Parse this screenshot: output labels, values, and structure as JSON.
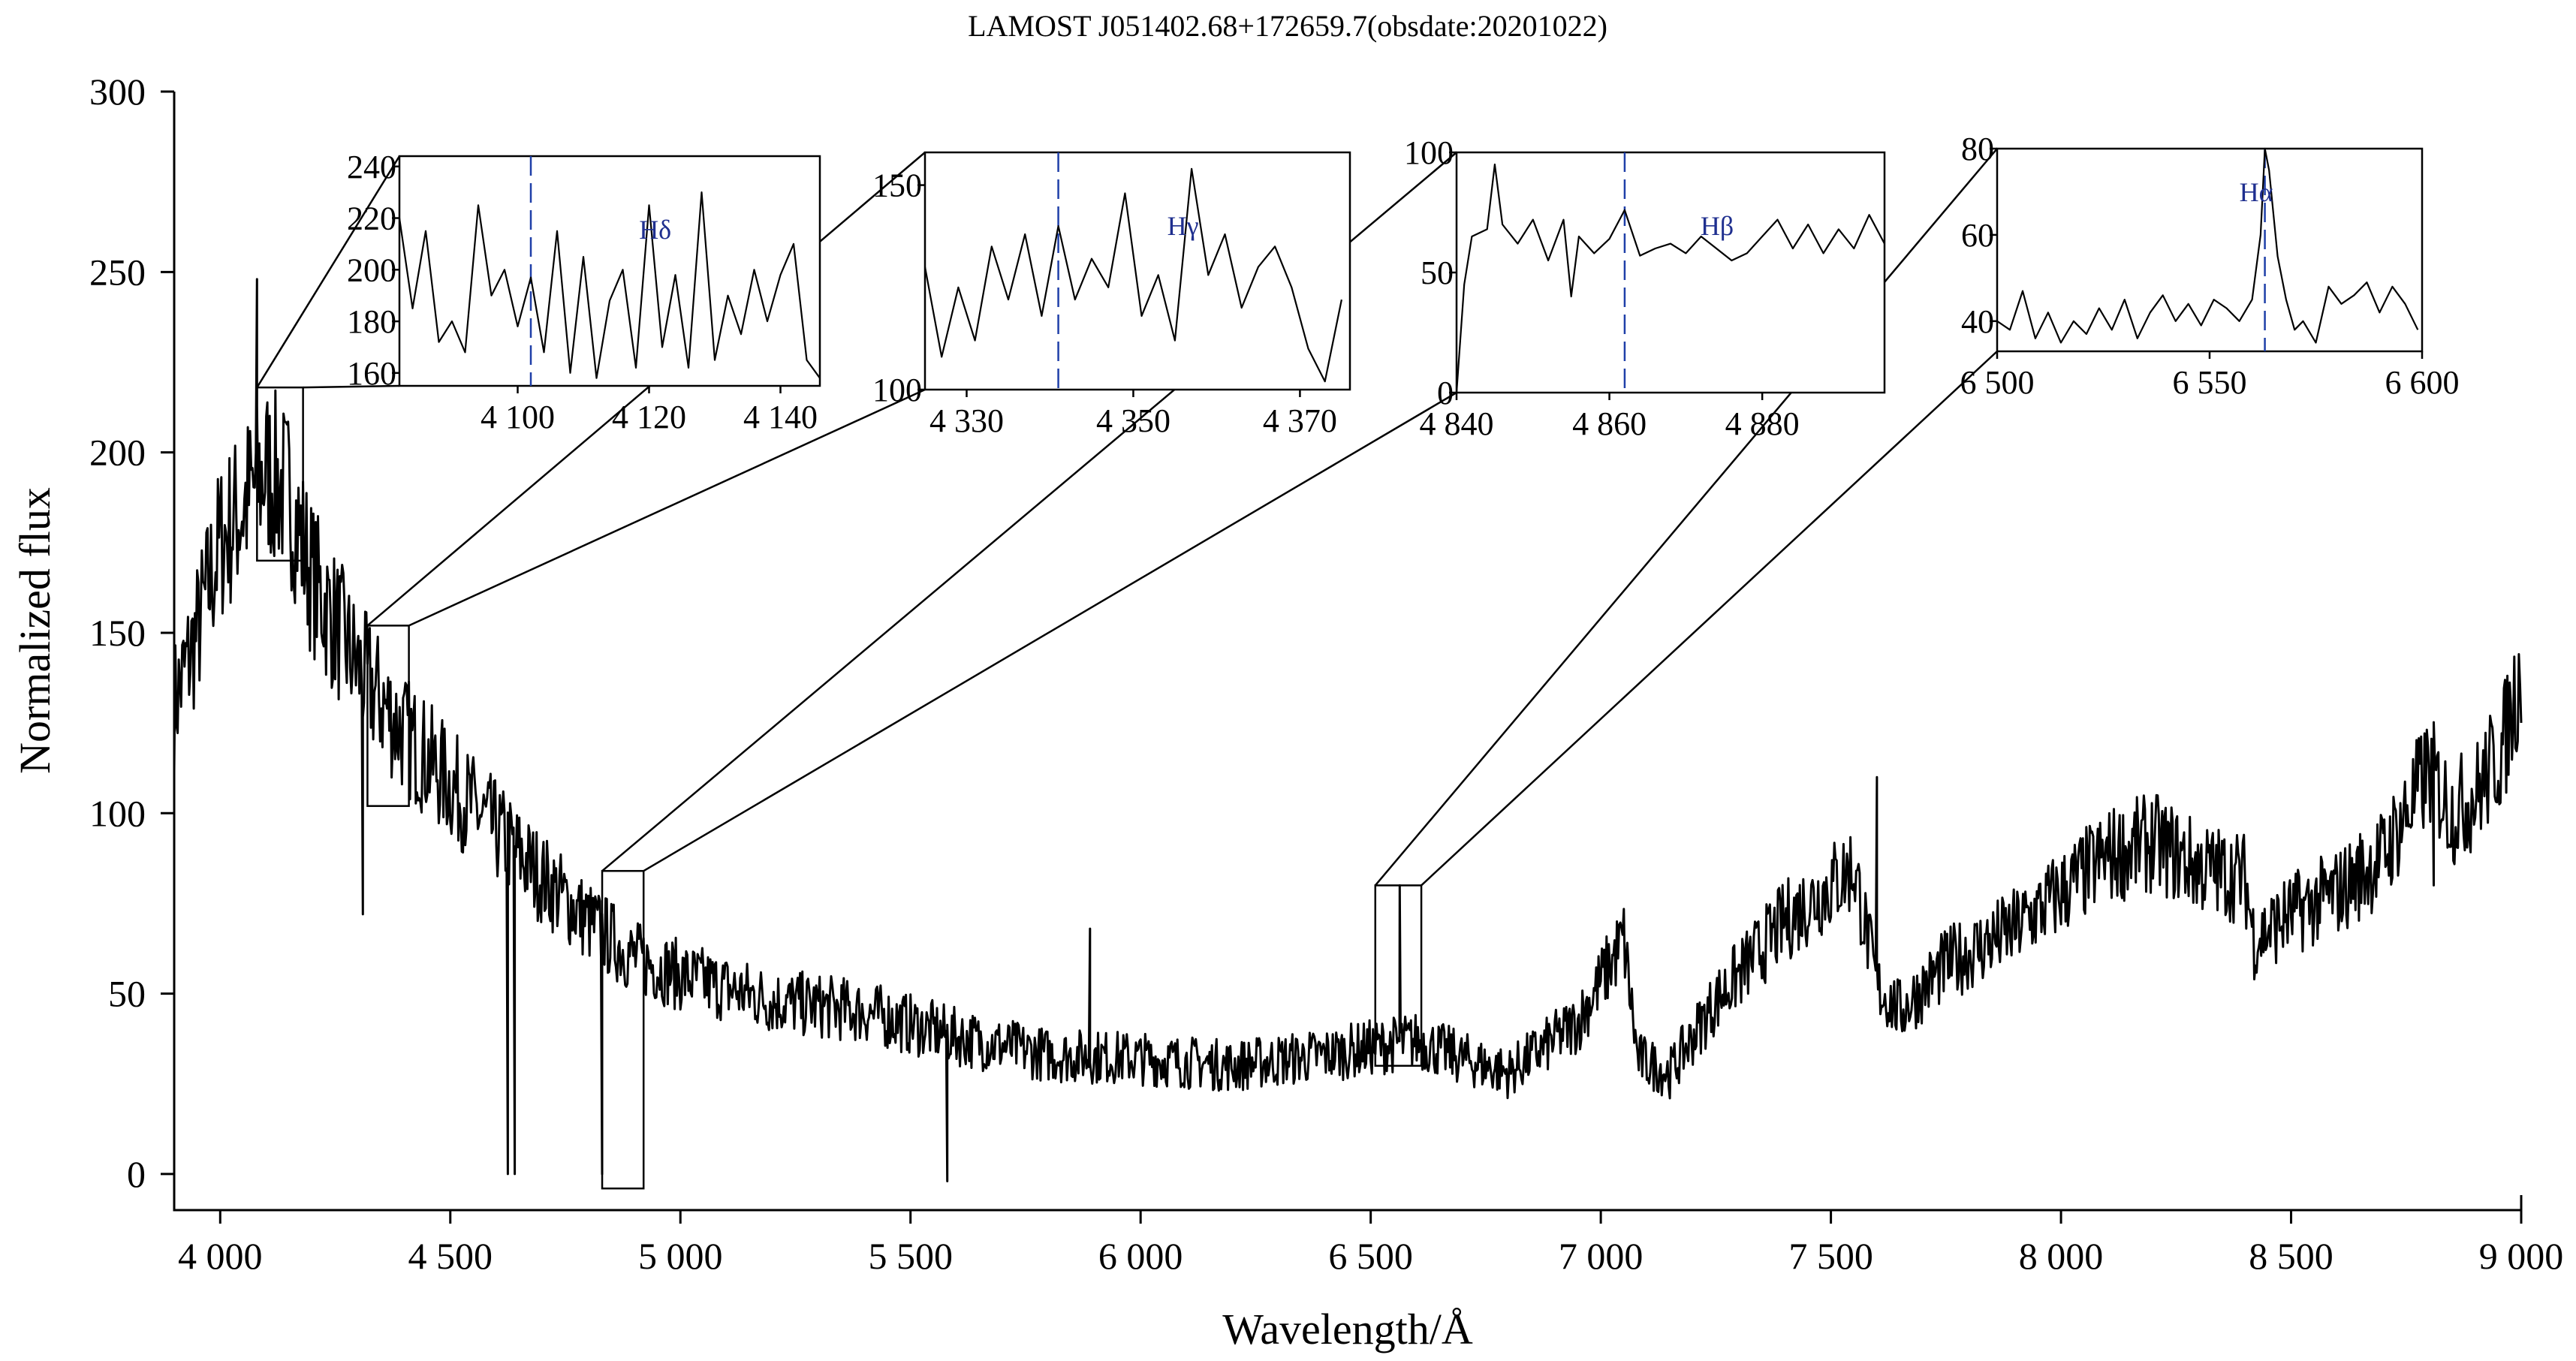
{
  "chart_data": [
    {
      "panel": "main",
      "type": "line",
      "title": "LAMOST J051402.68+172659.7(obsdate:20201022)",
      "xlabel": "Wavelength/Å",
      "ylabel": "Normalized flux",
      "xlim": [
        3900,
        9000
      ],
      "ylim": [
        -10,
        300
      ],
      "xticks": [
        4000,
        4500,
        5000,
        5500,
        6000,
        6500,
        7000,
        7500,
        8000,
        8500,
        9000
      ],
      "xtick_labels": [
        "4 000",
        "4 500",
        "5 000",
        "5 500",
        "6 000",
        "6 500",
        "7 000",
        "7 500",
        "8 000",
        "8 500",
        "9 000"
      ],
      "yticks": [
        0,
        50,
        100,
        150,
        200,
        250,
        300
      ],
      "ytick_labels": [
        "0",
        "50",
        "100",
        "150",
        "200",
        "250",
        "300"
      ],
      "grid": false,
      "series": [
        {
          "x": [
            3900,
            3950,
            4000,
            4050,
            4100,
            4150,
            4200,
            4300,
            4400,
            4500,
            4600,
            4700,
            4800,
            4900,
            5000,
            5200,
            5400,
            5600,
            5800,
            6000,
            6200,
            6400,
            6600,
            6700,
            6800,
            6950,
            7050,
            7080,
            7150,
            7250,
            7400,
            7550,
            7600,
            7650,
            7750,
            7900,
            8000,
            8100,
            8200,
            8300,
            8400,
            8420,
            8500,
            8600,
            8700,
            8800,
            8850,
            8900,
            8960,
            9000
          ],
          "y": [
            130,
            150,
            175,
            185,
            195,
            188,
            165,
            140,
            122,
            108,
            95,
            82,
            70,
            60,
            55,
            48,
            45,
            38,
            33,
            32,
            30,
            33,
            37,
            32,
            28,
            42,
            65,
            32,
            28,
            48,
            70,
            85,
            52,
            45,
            58,
            68,
            78,
            88,
            92,
            85,
            82,
            65,
            72,
            78,
            88,
            112,
            100,
            105,
            118,
            140
          ],
          "features": [
            {
              "x": 4080,
              "y": 248
            },
            {
              "x": 4310,
              "y": 72
            },
            {
              "x": 4625,
              "y": 0
            },
            {
              "x": 4640,
              "y": 0
            },
            {
              "x": 4830,
              "y": 0
            },
            {
              "x": 5580,
              "y": -2
            },
            {
              "x": 5890,
              "y": 68
            },
            {
              "x": 6563,
              "y": 80
            },
            {
              "x": 7600,
              "y": 110
            },
            {
              "x": 8810,
              "y": 80
            }
          ]
        }
      ],
      "zoom_boxes": [
        {
          "xlim": [
            4080,
            4180
          ],
          "ylim": [
            170,
            218
          ]
        },
        {
          "xlim": [
            4320,
            4410
          ],
          "ylim": [
            102,
            152
          ]
        },
        {
          "xlim": [
            4830,
            4920
          ],
          "ylim": [
            -4,
            84
          ]
        },
        {
          "xlim": [
            6510,
            6610
          ],
          "ylim": [
            30,
            80
          ]
        }
      ]
    },
    {
      "panel": "inset-hdelta",
      "type": "line",
      "annotation": "Hδ",
      "xlim": [
        4082,
        4146
      ],
      "ylim": [
        155,
        244
      ],
      "xticks": [
        4100,
        4120,
        4140
      ],
      "xtick_labels": [
        "4 100",
        "4 120",
        "4 140"
      ],
      "yticks": [
        160,
        180,
        200,
        220,
        240
      ],
      "ytick_labels": [
        "160",
        "180",
        "200",
        "220",
        "240"
      ],
      "reference_line_x": 4102,
      "series": [
        {
          "x": [
            4082,
            4084,
            4086,
            4088,
            4090,
            4092,
            4094,
            4096,
            4098,
            4100,
            4102,
            4104,
            4106,
            4108,
            4110,
            4112,
            4114,
            4116,
            4118,
            4120,
            4122,
            4124,
            4126,
            4128,
            4130,
            4132,
            4134,
            4136,
            4138,
            4140,
            4142,
            4144,
            4146
          ],
          "y": [
            220,
            185,
            215,
            172,
            180,
            168,
            225,
            190,
            200,
            178,
            197,
            168,
            215,
            160,
            205,
            158,
            188,
            200,
            162,
            225,
            170,
            198,
            162,
            230,
            165,
            190,
            175,
            200,
            180,
            198,
            210,
            165,
            158
          ]
        }
      ]
    },
    {
      "panel": "inset-hgamma",
      "type": "line",
      "annotation": "Hγ",
      "xlim": [
        4325,
        4376
      ],
      "ylim": [
        100,
        158
      ],
      "xticks": [
        4330,
        4350,
        4370
      ],
      "xtick_labels": [
        "4 330",
        "4 350",
        "4 370"
      ],
      "yticks": [
        100,
        150
      ],
      "ytick_labels": [
        "100",
        "150"
      ],
      "reference_line_x": 4341,
      "series": [
        {
          "x": [
            4325,
            4327,
            4329,
            4331,
            4333,
            4335,
            4337,
            4339,
            4341,
            4343,
            4345,
            4347,
            4349,
            4351,
            4353,
            4355,
            4357,
            4359,
            4361,
            4363,
            4365,
            4367,
            4369,
            4371,
            4373,
            4375
          ],
          "y": [
            130,
            108,
            125,
            112,
            135,
            122,
            138,
            118,
            140,
            122,
            132,
            125,
            148,
            118,
            128,
            112,
            154,
            128,
            138,
            120,
            130,
            135,
            125,
            110,
            102,
            122
          ]
        }
      ]
    },
    {
      "panel": "inset-hbeta",
      "type": "line",
      "annotation": "Hβ",
      "xlim": [
        4840,
        4896
      ],
      "ylim": [
        0,
        100
      ],
      "xticks": [
        4840,
        4860,
        4880
      ],
      "xtick_labels": [
        "4 840",
        "4 860",
        "4 880"
      ],
      "yticks": [
        0,
        50,
        100
      ],
      "ytick_labels": [
        "0",
        "50",
        "100"
      ],
      "reference_line_x": 4862,
      "series": [
        {
          "x": [
            4840,
            4841,
            4842,
            4844,
            4845,
            4846,
            4848,
            4850,
            4852,
            4854,
            4855,
            4856,
            4858,
            4860,
            4862,
            4864,
            4866,
            4868,
            4870,
            4872,
            4874,
            4876,
            4878,
            4880,
            4882,
            4884,
            4886,
            4888,
            4890,
            4892,
            4894,
            4896
          ],
          "y": [
            0,
            45,
            65,
            68,
            95,
            70,
            62,
            72,
            55,
            72,
            40,
            65,
            58,
            64,
            76,
            57,
            60,
            62,
            58,
            65,
            60,
            55,
            58,
            65,
            72,
            60,
            70,
            58,
            68,
            60,
            74,
            62
          ]
        }
      ]
    },
    {
      "panel": "inset-halpha",
      "type": "line",
      "annotation": "Hα",
      "xlim": [
        6500,
        6600
      ],
      "ylim": [
        33,
        80
      ],
      "xticks": [
        6500,
        6550,
        6600
      ],
      "xtick_labels": [
        "6 500",
        "6 550",
        "6 600"
      ],
      "yticks": [
        40,
        60,
        80
      ],
      "ytick_labels": [
        "40",
        "60",
        "80"
      ],
      "reference_line_x": 6563,
      "series": [
        {
          "x": [
            6500,
            6503,
            6506,
            6509,
            6512,
            6515,
            6518,
            6521,
            6524,
            6527,
            6530,
            6533,
            6536,
            6539,
            6542,
            6545,
            6548,
            6551,
            6554,
            6557,
            6560,
            6562,
            6563,
            6564,
            6566,
            6568,
            6570,
            6572,
            6575,
            6578,
            6581,
            6584,
            6587,
            6590,
            6593,
            6596,
            6599
          ],
          "y": [
            40,
            38,
            47,
            36,
            42,
            35,
            40,
            37,
            43,
            38,
            45,
            36,
            42,
            46,
            40,
            44,
            39,
            45,
            43,
            40,
            45,
            60,
            80,
            75,
            55,
            45,
            38,
            40,
            35,
            48,
            44,
            46,
            49,
            42,
            48,
            44,
            38
          ]
        }
      ]
    }
  ]
}
